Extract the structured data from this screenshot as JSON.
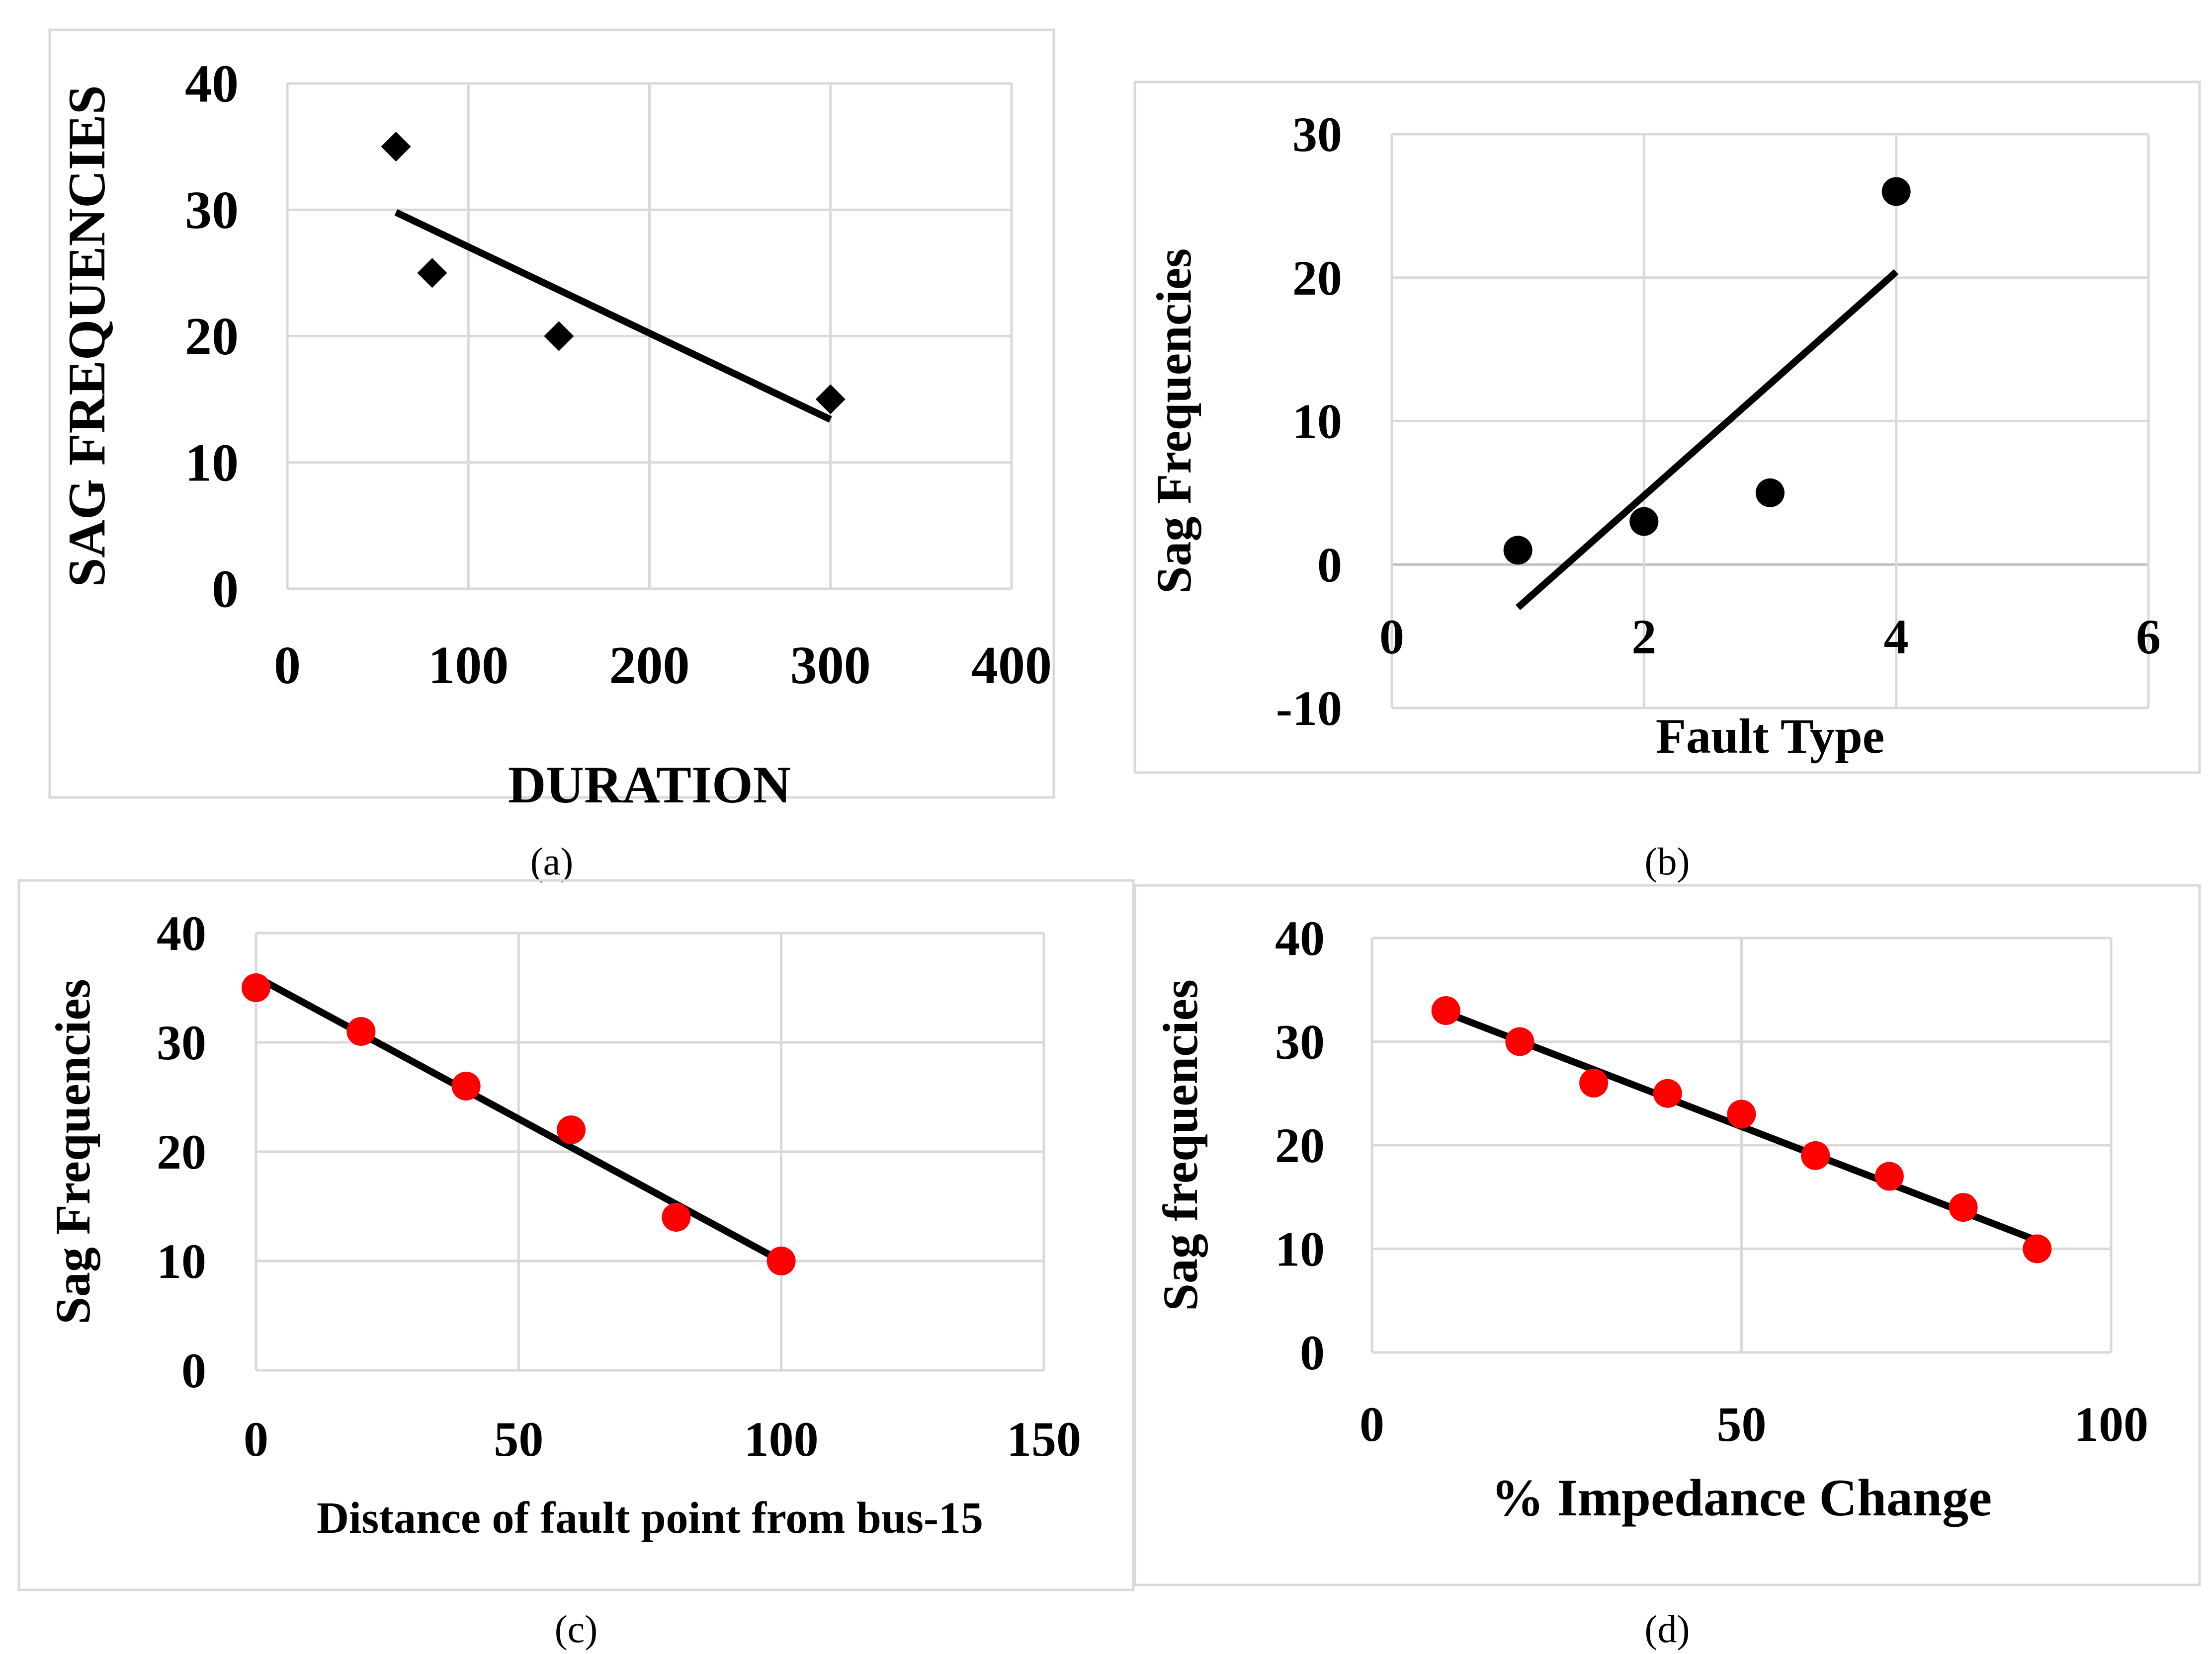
{
  "chart_data": [
    {
      "id": "a",
      "type": "scatter",
      "caption": "(a)",
      "title": "",
      "xlabel": "DURATION",
      "ylabel": "SAG FREQUENCIES",
      "xlim": [
        0,
        400
      ],
      "ylim": [
        0,
        40
      ],
      "xticks": [
        "0",
        "100",
        "200",
        "300",
        "400"
      ],
      "yticks": [
        "0",
        "10",
        "20",
        "30",
        "40"
      ],
      "grid": true,
      "marker": "diamond",
      "marker_color": "#000000",
      "series": [
        {
          "name": "Sag frequencies",
          "x": [
            60,
            80,
            150,
            300
          ],
          "y": [
            35,
            25,
            20,
            15
          ]
        }
      ],
      "trendline": {
        "x": [
          60,
          300
        ],
        "y": [
          29.8,
          13.4
        ]
      }
    },
    {
      "id": "b",
      "type": "scatter",
      "caption": "(b)",
      "title": "",
      "xlabel": "Fault Type",
      "ylabel": "Sag Frequencies",
      "xlim": [
        0,
        6
      ],
      "ylim": [
        -10,
        30
      ],
      "xticks": [
        "0",
        "2",
        "4",
        "6"
      ],
      "yticks": [
        "-10",
        "0",
        "10",
        "20",
        "30"
      ],
      "grid": true,
      "marker": "circle",
      "marker_color": "#000000",
      "series": [
        {
          "name": "Sag frequencies",
          "x": [
            1,
            2,
            3,
            4
          ],
          "y": [
            1,
            3,
            5,
            26
          ]
        }
      ],
      "trendline": {
        "x": [
          1,
          4
        ],
        "y": [
          -3,
          20.4
        ]
      }
    },
    {
      "id": "c",
      "type": "scatter",
      "caption": "(c)",
      "title": "",
      "xlabel": "Distance of fault point from bus-15",
      "ylabel": "Sag Frequencies",
      "xlim": [
        0,
        150
      ],
      "ylim": [
        0,
        40
      ],
      "xticks": [
        "0",
        "50",
        "100",
        "150"
      ],
      "yticks": [
        "0",
        "10",
        "20",
        "30",
        "40"
      ],
      "grid": true,
      "marker": "circle",
      "marker_color": "#ff0000",
      "series": [
        {
          "name": "Sag frequencies",
          "x": [
            0,
            20,
            40,
            60,
            80,
            100
          ],
          "y": [
            35,
            31,
            26,
            22,
            14,
            10
          ]
        }
      ],
      "trendline": {
        "x": [
          0,
          100
        ],
        "y": [
          36,
          10
        ]
      }
    },
    {
      "id": "d",
      "type": "scatter",
      "caption": "(d)",
      "title": "",
      "xlabel": "% Impedance Change",
      "ylabel": "Sag frequencies",
      "xlim": [
        0,
        100
      ],
      "ylim": [
        0,
        40
      ],
      "xticks": [
        "0",
        "50",
        "100"
      ],
      "yticks": [
        "0",
        "10",
        "20",
        "30",
        "40"
      ],
      "grid": true,
      "marker": "circle",
      "marker_color": "#ff0000",
      "series": [
        {
          "name": "Sag frequencies",
          "x": [
            10,
            20,
            30,
            40,
            50,
            60,
            70,
            80,
            90
          ],
          "y": [
            33,
            30,
            26,
            25,
            23,
            19,
            17,
            14,
            10
          ]
        }
      ],
      "trendline": {
        "x": [
          10,
          90
        ],
        "y": [
          32.8,
          10.8
        ]
      }
    }
  ]
}
